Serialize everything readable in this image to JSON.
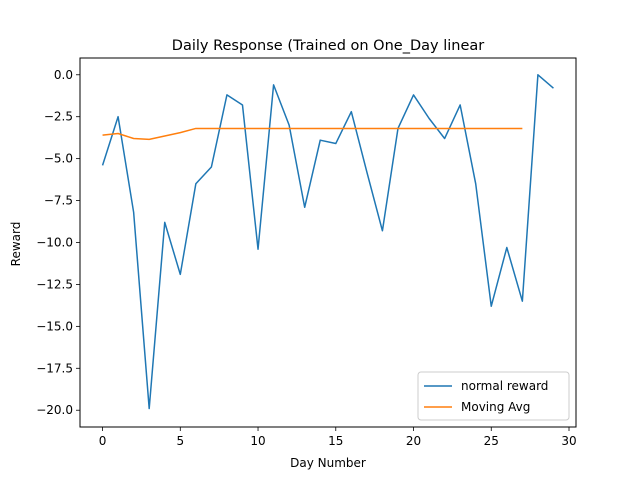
{
  "chart_data": {
    "type": "line",
    "title": "Daily Response (Trained on One_Day linear",
    "xlabel": "Day Number",
    "ylabel": "Reward",
    "xlim": [
      -1.45,
      30.45
    ],
    "ylim": [
      -21.0,
      1.0
    ],
    "xticks": [
      0,
      5,
      10,
      15,
      20,
      25,
      30
    ],
    "yticks": [
      0.0,
      -2.5,
      -5.0,
      -7.5,
      -10.0,
      -12.5,
      -15.0,
      -17.5,
      -20.0
    ],
    "ytick_labels": [
      "0.0",
      "−2.5",
      "−5.0",
      "−7.5",
      "−10.0",
      "−12.5",
      "−15.0",
      "−17.5",
      "−20.0"
    ],
    "grid": false,
    "legend_position": "lower-right",
    "series": [
      {
        "name": "normal reward",
        "color": "#1f77b4",
        "x": [
          0,
          1,
          2,
          3,
          4,
          5,
          6,
          7,
          8,
          9,
          10,
          11,
          12,
          13,
          14,
          15,
          16,
          17,
          18,
          19,
          20,
          21,
          22,
          23,
          24,
          25,
          26,
          27,
          28,
          29
        ],
        "y": [
          -5.4,
          -2.5,
          -8.2,
          -19.9,
          -8.8,
          -11.9,
          -6.5,
          -5.5,
          -1.2,
          -1.8,
          -10.4,
          -0.6,
          -3.0,
          -7.9,
          -3.9,
          -4.1,
          -2.2,
          -5.8,
          -9.3,
          -3.2,
          -1.2,
          -2.6,
          -3.8,
          -1.8,
          -6.5,
          -13.8,
          -10.3,
          -13.5,
          0.0,
          -0.8
        ]
      },
      {
        "name": "Moving Avg",
        "color": "#ff7f0e",
        "x": [
          0,
          1,
          2,
          3,
          4,
          5,
          6,
          7,
          8,
          9,
          10,
          11,
          12,
          13,
          14,
          15,
          16,
          17,
          18,
          19,
          20,
          21,
          22,
          23,
          24,
          25,
          26,
          27
        ],
        "y": [
          -3.6,
          -3.5,
          -3.8,
          -3.85,
          -3.65,
          -3.45,
          -3.2,
          -3.2,
          -3.2,
          -3.2,
          -3.2,
          -3.2,
          -3.2,
          -3.2,
          -3.2,
          -3.2,
          -3.2,
          -3.2,
          -3.2,
          -3.2,
          -3.2,
          -3.2,
          -3.2,
          -3.2,
          -3.2,
          -3.2,
          -3.2,
          -3.2
        ]
      }
    ]
  }
}
